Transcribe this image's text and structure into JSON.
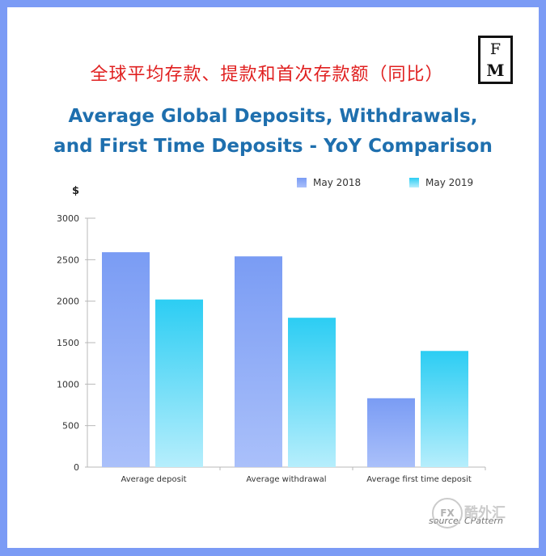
{
  "header": {
    "cn_title": "全球平均存款、提款和首次存款额（同比）",
    "logo_top": "F",
    "logo_bottom": "M"
  },
  "watermark": {
    "badge": "FX",
    "text": "酷外汇",
    "source": "source: CPattern"
  },
  "chart_data": {
    "type": "bar",
    "title": "Average Global Deposits, Withdrawals, and First Time Deposits - YoY Comparison",
    "title_lines": [
      "Average Global Deposits, Withdrawals,",
      "and First Time Deposits - YoY Comparison"
    ],
    "ylabel": "$",
    "xlabel": "",
    "categories": [
      "Average deposit",
      "Average withdrawal",
      "Average first time deposit"
    ],
    "series": [
      {
        "name": "May 2018",
        "values": [
          2590,
          2540,
          830
        ],
        "color_top": "#7a9cf4",
        "color_bottom": "#aac0fa"
      },
      {
        "name": "May 2019",
        "values": [
          2020,
          1800,
          1400
        ],
        "color_top": "#2ccdf3",
        "color_bottom": "#b6eefc"
      }
    ],
    "ylim": [
      0,
      3000
    ],
    "yticks": [
      0,
      500,
      1000,
      1500,
      2000,
      2500,
      3000
    ],
    "grid": false,
    "legend": "top-right"
  }
}
